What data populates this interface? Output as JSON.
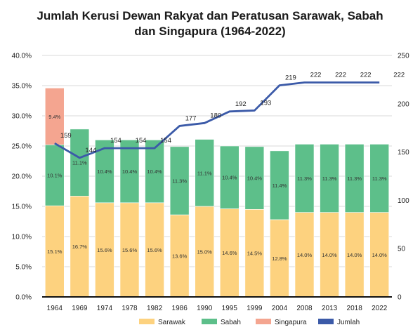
{
  "title_line1": "Jumlah Kerusi Dewan Rakyat dan Peratusan Sarawak, Sabah",
  "title_line2": "dan Singapura (1964-2022)",
  "colors": {
    "Sarawak": "#fdd27f",
    "Sabah": "#5dbf8a",
    "Singapura": "#f4a590",
    "Jumlah": "#3b5aa8"
  },
  "chart_data": {
    "type": "bar",
    "stacked": true,
    "categories": [
      "1964",
      "1969",
      "1974",
      "1978",
      "1982",
      "1986",
      "1990",
      "1995",
      "1999",
      "2004",
      "2008",
      "2013",
      "2018",
      "2022"
    ],
    "series": [
      {
        "name": "Sarawak",
        "axis": "left",
        "values": [
          15.1,
          16.7,
          15.6,
          15.6,
          15.6,
          13.6,
          15.0,
          14.6,
          14.5,
          12.8,
          14.0,
          14.0,
          14.0,
          14.0
        ],
        "labels": [
          "15.1%",
          "16.7%",
          "15.6%",
          "15.6%",
          "15.6%",
          "13.6%",
          "15.0%",
          "14.6%",
          "14.5%",
          "12.8%",
          "14.0%",
          "14.0%",
          "14.0%",
          "14.0%"
        ]
      },
      {
        "name": "Sabah",
        "axis": "left",
        "values": [
          10.1,
          11.1,
          10.4,
          10.4,
          10.4,
          11.3,
          11.1,
          10.4,
          10.4,
          11.4,
          11.3,
          11.3,
          11.3,
          11.3
        ],
        "labels": [
          "10.1%",
          "11.1%",
          "10.4%",
          "10.4%",
          "10.4%",
          "11.3%",
          "11.1%",
          "10.4%",
          "10.4%",
          "11.4%",
          "11.3%",
          "11.3%",
          "11.3%",
          "11.3%"
        ]
      },
      {
        "name": "Singapura",
        "axis": "left",
        "values": [
          9.4,
          0,
          0,
          0,
          0,
          0,
          0,
          0,
          0,
          0,
          0,
          0,
          0,
          0
        ],
        "labels": [
          "9.4%",
          "",
          "",
          "",
          "",
          "",
          "",
          "",
          "",
          "",
          "",
          "",
          "",
          ""
        ]
      },
      {
        "name": "Jumlah",
        "type": "line",
        "axis": "right",
        "values": [
          159,
          144,
          154,
          154,
          154,
          177,
          180,
          192,
          193,
          219,
          222,
          222,
          222,
          222
        ],
        "labels": [
          "159",
          "144",
          "154",
          "154",
          "154",
          "177",
          "180",
          "192",
          "193",
          "219",
          "222",
          "222",
          "222",
          "222"
        ]
      }
    ],
    "left_axis": {
      "range": [
        0,
        40
      ],
      "ticks": [
        "0.0%",
        "5.0%",
        "10.0%",
        "15.0%",
        "20.0%",
        "25.0%",
        "30.0%",
        "35.0%",
        "40.0%"
      ]
    },
    "right_axis": {
      "range": [
        0,
        250
      ],
      "ticks": [
        "0",
        "50",
        "100",
        "150",
        "200",
        "250"
      ]
    },
    "grid": true,
    "legend": {
      "position": "bottom",
      "entries": [
        "Sarawak",
        "Sabah",
        "Singapura",
        "Jumlah"
      ]
    }
  }
}
